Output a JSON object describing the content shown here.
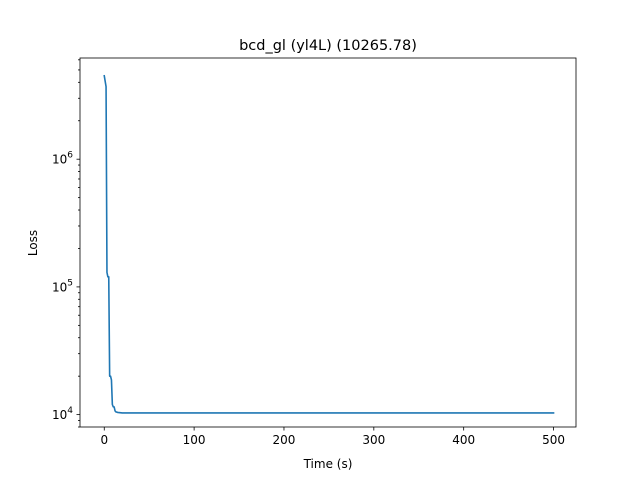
{
  "chart_data": {
    "type": "line",
    "title": "bcd_gl (yl4L) (10265.78)",
    "xlabel": "Time (s)",
    "ylabel": "Loss",
    "xlim": [
      -27,
      525
    ],
    "ylim": [
      8000,
      6200000
    ],
    "y_scale": "log",
    "grid": false,
    "x_ticks": [
      {
        "value": 0,
        "label": "0"
      },
      {
        "value": 100,
        "label": "100"
      },
      {
        "value": 200,
        "label": "200"
      },
      {
        "value": 300,
        "label": "300"
      },
      {
        "value": 400,
        "label": "400"
      },
      {
        "value": 500,
        "label": "500"
      }
    ],
    "y_ticks": [
      {
        "value": 10000,
        "base": "10",
        "exp": "4"
      },
      {
        "value": 100000,
        "base": "10",
        "exp": "5"
      },
      {
        "value": 1000000,
        "base": "10",
        "exp": "6"
      }
    ],
    "series": [
      {
        "color": "#1f77b4",
        "x": [
          0,
          2,
          3,
          4,
          5,
          6,
          7,
          8,
          9,
          10,
          11,
          12,
          13,
          15,
          20,
          50,
          100,
          200,
          300,
          400,
          500
        ],
        "y": [
          4500000,
          3700000,
          130000,
          120000,
          120000,
          20000,
          20000,
          18700,
          12000,
          11500,
          11500,
          10700,
          10500,
          10400,
          10300,
          10300,
          10300,
          10300,
          10300,
          10300,
          10300
        ]
      }
    ]
  }
}
